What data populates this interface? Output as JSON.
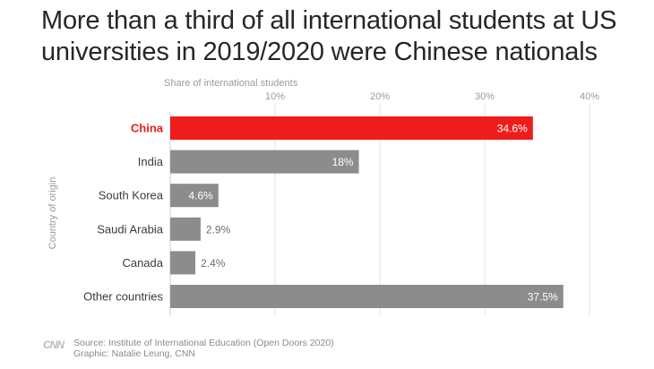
{
  "title": "More than a third of all international students at US universities in 2019/2020 were Chinese nationals",
  "footer": {
    "logo": "CNN",
    "source": "Source: Institute of International Education (Open Doors 2020)",
    "graphic": "Graphic: Natalie Leung, CNN"
  },
  "colors": {
    "highlight": "#ee1c1c",
    "bar": "#8c8c8c",
    "grid": "#e3e3e3",
    "axis_text": "#9a9a9a"
  },
  "chart_data": {
    "type": "bar",
    "orientation": "horizontal",
    "xlabel": "Share of international students",
    "ylabel": "Country of origin",
    "xlim": [
      0,
      40
    ],
    "xticks": [
      "10%",
      "20%",
      "30%",
      "40%"
    ],
    "xtick_values": [
      10,
      20,
      30,
      40
    ],
    "grid": true,
    "categories": [
      "China",
      "India",
      "South Korea",
      "Saudi Arabia",
      "Canada",
      "Other countries"
    ],
    "values": [
      34.6,
      18,
      4.6,
      2.9,
      2.4,
      37.5
    ],
    "value_labels": [
      "34.6%",
      "18%",
      "4.6%",
      "2.9%",
      "2.4%",
      "37.5%"
    ],
    "highlight": "China"
  }
}
